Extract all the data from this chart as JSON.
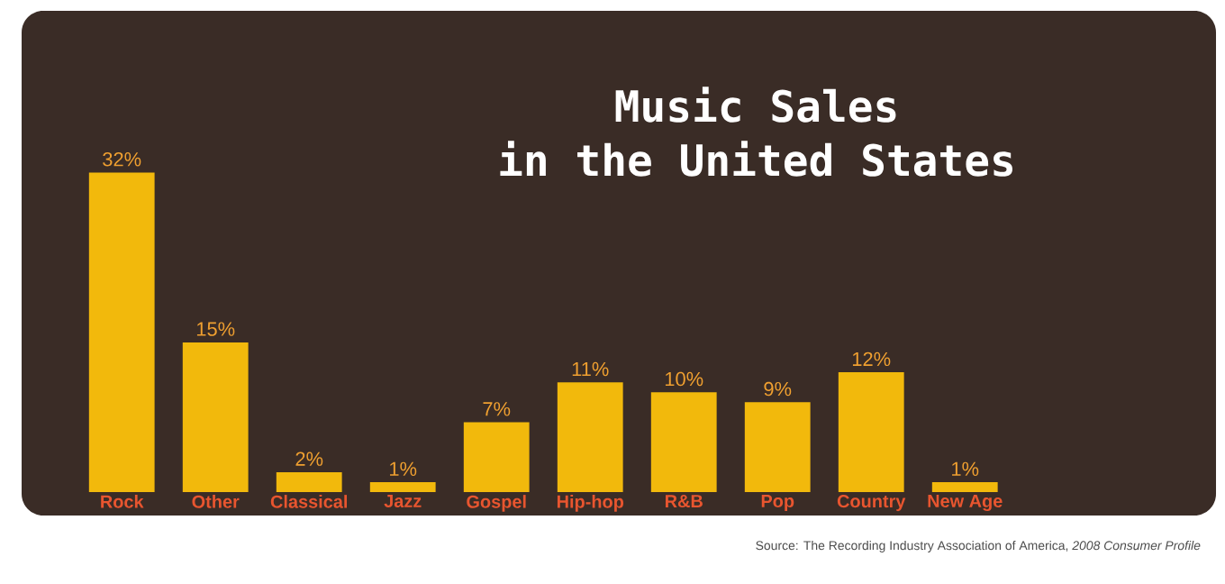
{
  "chart_data": {
    "type": "bar",
    "title": "Music Sales",
    "subtitle": "in the United States",
    "categories": [
      "Rock",
      "Other",
      "Classical",
      "Jazz",
      "Gospel",
      "Hip-hop",
      "R&B",
      "Pop",
      "Country",
      "New Age"
    ],
    "values": [
      32,
      15,
      2,
      1,
      7,
      11,
      10,
      9,
      12,
      1
    ],
    "value_labels": [
      "32%",
      "15%",
      "2%",
      "1%",
      "7%",
      "11%",
      "10%",
      "9%",
      "12%",
      "1%"
    ],
    "color": "#f2b90c",
    "annotations": [
      "Source: The Recording Industry Association of America, *2008 Consumer Profile*"
    ]
  }
}
